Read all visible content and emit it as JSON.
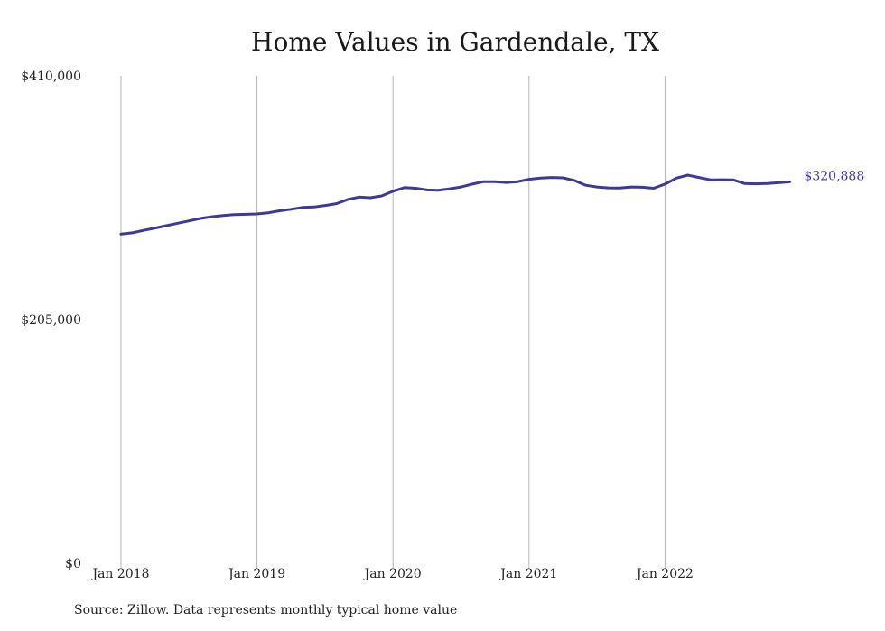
{
  "chart_data": {
    "type": "line",
    "title": "Home Values in Gardendale, TX",
    "xlabel": "",
    "ylabel": "",
    "ylim": [
      0,
      410000
    ],
    "y_ticks": [
      "$0",
      "$205,000",
      "$410,000"
    ],
    "y_tick_values": [
      0,
      205000,
      410000
    ],
    "x_ticks": [
      "Jan 2018",
      "Jan 2019",
      "Jan 2020",
      "Jan 2021",
      "Jan 2022"
    ],
    "x_tick_values": [
      "2018-01",
      "2019-01",
      "2020-01",
      "2021-01",
      "2022-01"
    ],
    "grid": "vertical",
    "end_label": "$320,888",
    "series": [
      {
        "color": "#3d3a96",
        "x": [
          "2018-01",
          "2018-02",
          "2018-03",
          "2018-04",
          "2018-05",
          "2018-06",
          "2018-07",
          "2018-08",
          "2018-09",
          "2018-10",
          "2018-11",
          "2018-12",
          "2019-01",
          "2019-02",
          "2019-03",
          "2019-04",
          "2019-05",
          "2019-06",
          "2019-07",
          "2019-08",
          "2019-09",
          "2019-10",
          "2019-11",
          "2019-12",
          "2020-01",
          "2020-02",
          "2020-03",
          "2020-04",
          "2020-05",
          "2020-06",
          "2020-07",
          "2020-08",
          "2020-09",
          "2020-10",
          "2020-11",
          "2020-12",
          "2021-01",
          "2021-02",
          "2021-03",
          "2021-04",
          "2021-05",
          "2021-06",
          "2021-07",
          "2021-08",
          "2021-09",
          "2021-10",
          "2021-11",
          "2021-12",
          "2022-01",
          "2022-02",
          "2022-03",
          "2022-04",
          "2022-05",
          "2022-06",
          "2022-07",
          "2022-08",
          "2022-09",
          "2022-10",
          "2022-11",
          "2022-12"
        ],
        "values": [
          277000,
          278000,
          280000,
          282000,
          284000,
          286000,
          288000,
          290000,
          291500,
          292500,
          293300,
          293500,
          293800,
          294800,
          296500,
          297800,
          299300,
          299700,
          301000,
          302500,
          306000,
          308000,
          307500,
          309000,
          313000,
          316000,
          315500,
          314000,
          313800,
          315000,
          316500,
          319000,
          321000,
          321000,
          320300,
          321000,
          323000,
          324000,
          324500,
          324200,
          322000,
          318000,
          316500,
          315800,
          315700,
          316500,
          316300,
          315500,
          319000,
          324000,
          326500,
          324500,
          322500,
          322600,
          322500,
          319500,
          319200,
          319500,
          320100,
          320888
        ]
      }
    ]
  },
  "footer": {
    "source": "Source: Zillow. Data represents monthly typical home value"
  }
}
